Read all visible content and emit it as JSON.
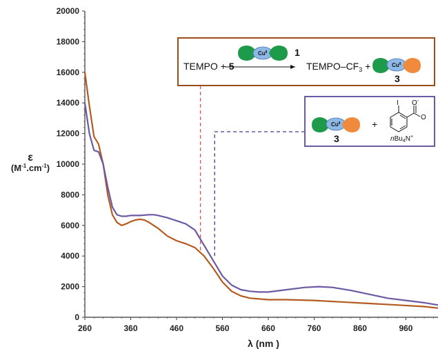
{
  "chart_data": {
    "type": "line",
    "xlabel": "λ (nm )",
    "ylabel_line1": "ε",
    "ylabel_line2": "(M-1.cm-1)",
    "xlim": [
      260,
      1030
    ],
    "ylim": [
      0,
      20000
    ],
    "x_ticks": [
      260,
      360,
      460,
      560,
      660,
      760,
      860,
      960
    ],
    "y_ticks": [
      0,
      2000,
      4000,
      6000,
      8000,
      10000,
      12000,
      14000,
      16000,
      18000,
      20000
    ],
    "series": [
      {
        "color": "#b35a1f",
        "x": [
          260,
          270,
          280,
          290,
          300,
          310,
          320,
          330,
          340,
          350,
          360,
          370,
          380,
          390,
          400,
          420,
          440,
          460,
          480,
          500,
          520,
          540,
          560,
          580,
          600,
          620,
          640,
          660,
          700,
          760,
          820,
          880,
          940,
          1000,
          1030
        ],
        "y": [
          16000,
          13800,
          11800,
          11300,
          10000,
          8000,
          6700,
          6200,
          6000,
          6100,
          6250,
          6350,
          6400,
          6350,
          6200,
          5800,
          5300,
          5000,
          4800,
          4550,
          4000,
          3200,
          2300,
          1700,
          1400,
          1250,
          1200,
          1150,
          1150,
          1100,
          1000,
          900,
          800,
          700,
          600
        ]
      },
      {
        "color": "#6b59a3",
        "x": [
          260,
          270,
          280,
          290,
          300,
          310,
          320,
          330,
          340,
          350,
          360,
          380,
          400,
          410,
          420,
          440,
          460,
          480,
          500,
          520,
          540,
          560,
          580,
          600,
          620,
          640,
          660,
          700,
          740,
          770,
          800,
          840,
          880,
          920,
          960,
          1000,
          1030
        ],
        "y": [
          14000,
          12000,
          10900,
          10800,
          10000,
          8500,
          7200,
          6700,
          6600,
          6600,
          6650,
          6650,
          6700,
          6700,
          6650,
          6500,
          6300,
          6100,
          5700,
          4700,
          3700,
          2700,
          2100,
          1800,
          1700,
          1650,
          1650,
          1800,
          1950,
          2000,
          1950,
          1750,
          1500,
          1250,
          1100,
          950,
          800
        ]
      }
    ],
    "marker_1_x": 512,
    "marker_2_x": 543
  },
  "box1": {
    "text_left": "TEMPO + ",
    "bold_5": "5",
    "label_1": "1",
    "text_right": "TEMPO–CF",
    "sub_3": "3",
    "plus": " +",
    "label_3": "3",
    "cu": "Cu",
    "cu_sup": "II",
    "border_color": "#9b4d1c"
  },
  "box2": {
    "label_3": "3",
    "plus": "+",
    "iodo": "I",
    "o_minus": "O",
    "minus": "-",
    "o": "O",
    "counterion_n": "n",
    "counterion": "Bu",
    "counterion_sub": "4",
    "counterion_n_plus": "N",
    "counterion_plus": "+",
    "cu": "Cu",
    "cu_sup": "II",
    "border_color": "#6b59a3"
  }
}
